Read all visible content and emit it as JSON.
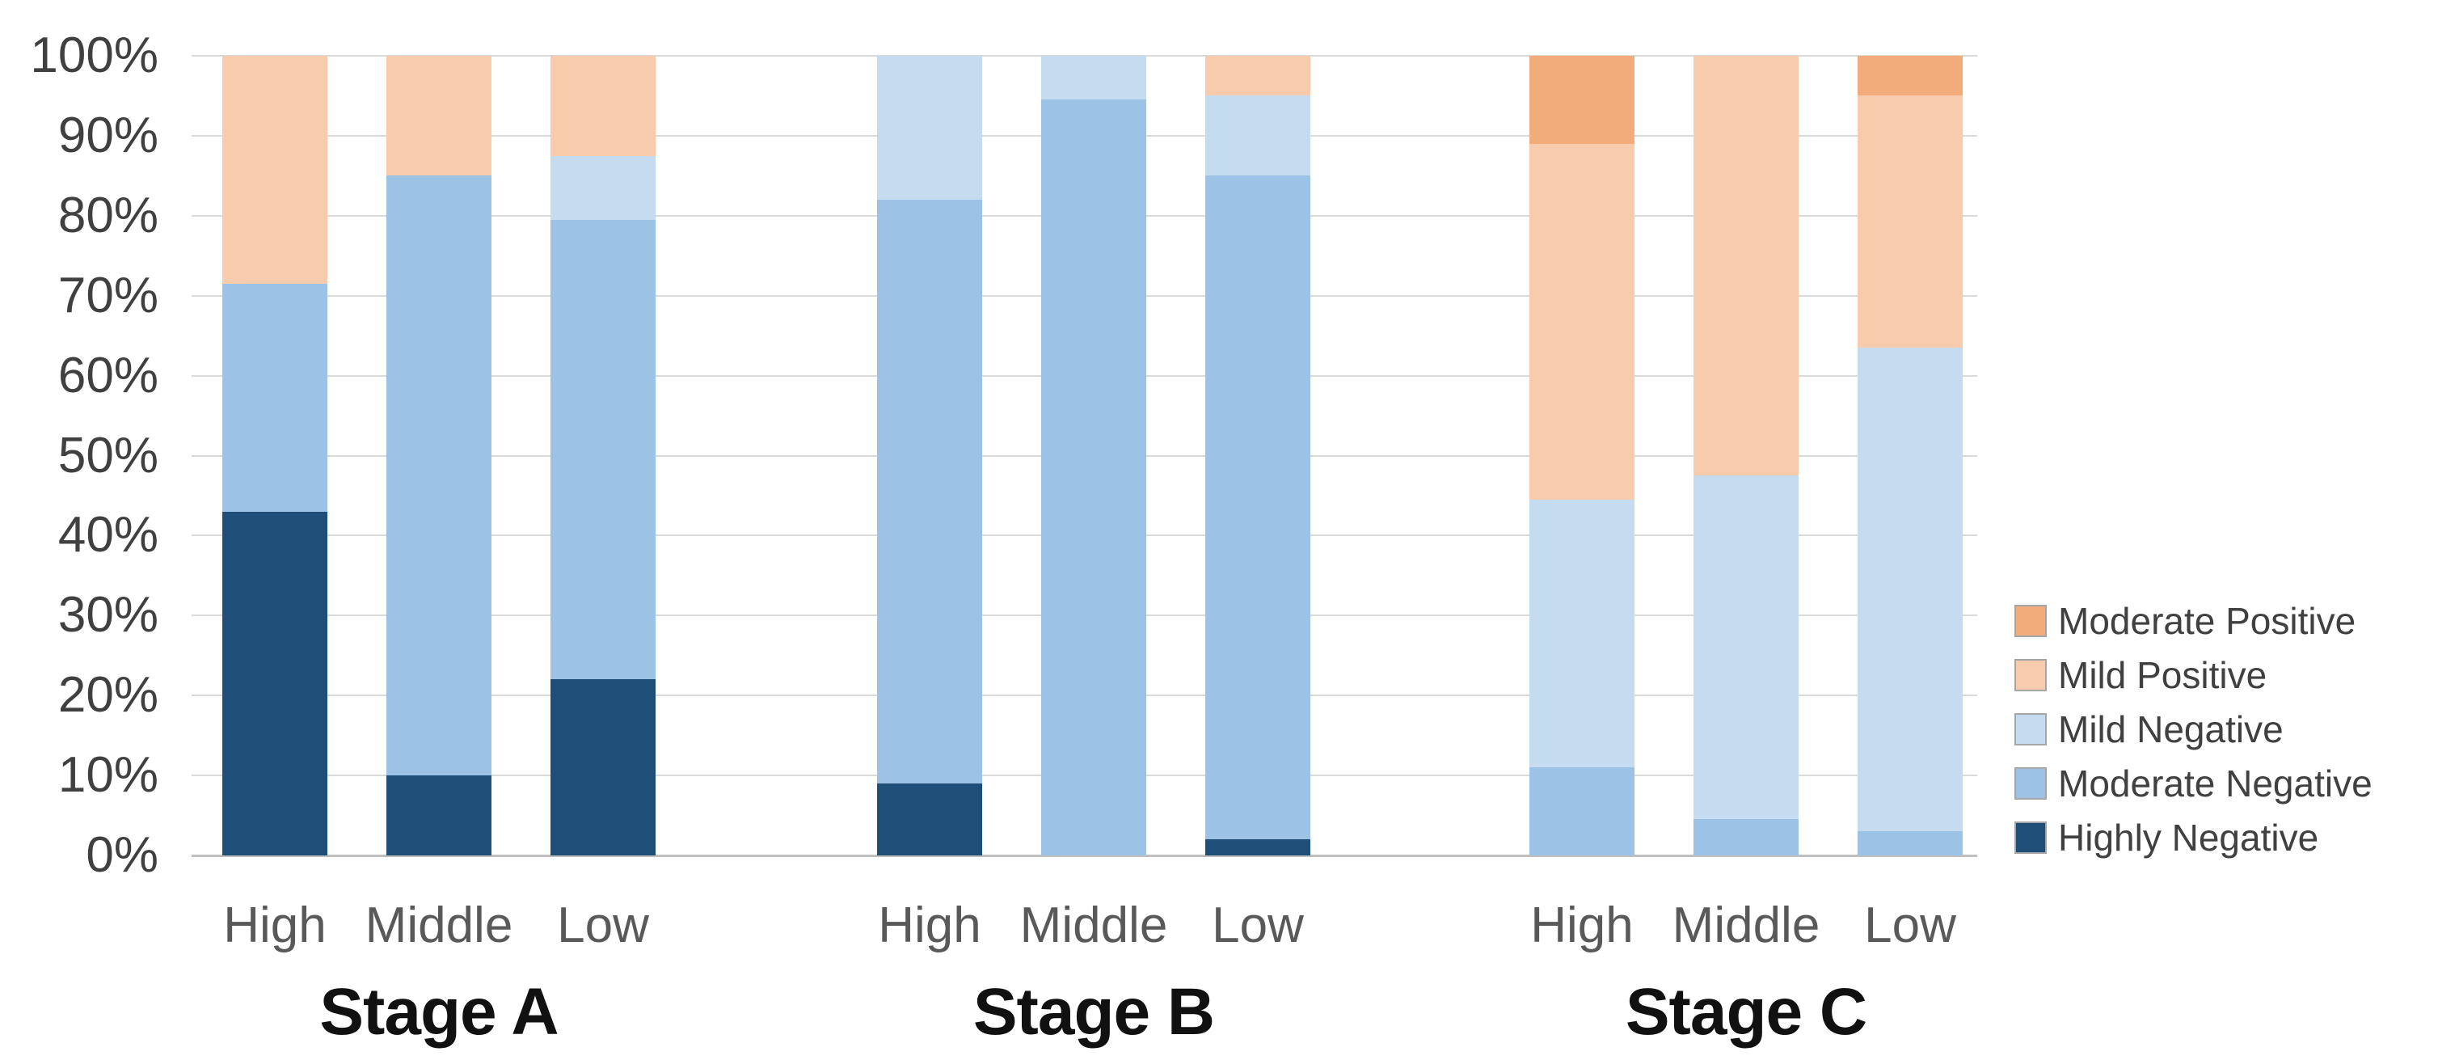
{
  "chart_data": {
    "type": "bar",
    "variant": "stacked-100-percent-column",
    "title": "",
    "xlabel": "",
    "ylabel": "",
    "y_axis": {
      "min": 0,
      "max": 100,
      "tick_step": 10,
      "tick_labels": [
        "0%",
        "10%",
        "20%",
        "30%",
        "40%",
        "50%",
        "60%",
        "70%",
        "80%",
        "90%",
        "100%"
      ],
      "grid": true
    },
    "series": [
      {
        "name": "Highly Negative",
        "color": "#1F4E79"
      },
      {
        "name": "Moderate Negative",
        "color": "#9CC3E6"
      },
      {
        "name": "Mild Negative",
        "color": "#C5DBF0"
      },
      {
        "name": "Mild Positive",
        "color": "#F8CBAD"
      },
      {
        "name": "Moderate Positive",
        "color": "#F2AC7C"
      }
    ],
    "groups": [
      {
        "label": "Stage A",
        "bars": [
          {
            "label": "High",
            "values": [
              43,
              28.5,
              0,
              28.5,
              0
            ]
          },
          {
            "label": "Middle",
            "values": [
              10,
              75,
              0,
              15,
              0
            ]
          },
          {
            "label": "Low",
            "values": [
              22,
              57.5,
              8,
              12.5,
              0
            ]
          }
        ]
      },
      {
        "label": "Stage B",
        "bars": [
          {
            "label": "High",
            "values": [
              9,
              73,
              18,
              0,
              0
            ]
          },
          {
            "label": "Middle",
            "values": [
              0,
              94.5,
              5.5,
              0,
              0
            ]
          },
          {
            "label": "Low",
            "values": [
              2,
              83,
              10,
              5,
              0
            ]
          }
        ]
      },
      {
        "label": "Stage C",
        "bars": [
          {
            "label": "High",
            "values": [
              0,
              11,
              33.5,
              44.5,
              11
            ]
          },
          {
            "label": "Middle",
            "values": [
              0,
              4.5,
              43,
              52.5,
              0
            ]
          },
          {
            "label": "Low",
            "values": [
              0,
              3,
              60.5,
              31.5,
              5
            ]
          }
        ]
      }
    ],
    "legend": {
      "position": "right",
      "entries": [
        "Moderate Positive",
        "Mild Positive",
        "Mild Negative",
        "Moderate Negative",
        "Highly Negative"
      ]
    }
  }
}
